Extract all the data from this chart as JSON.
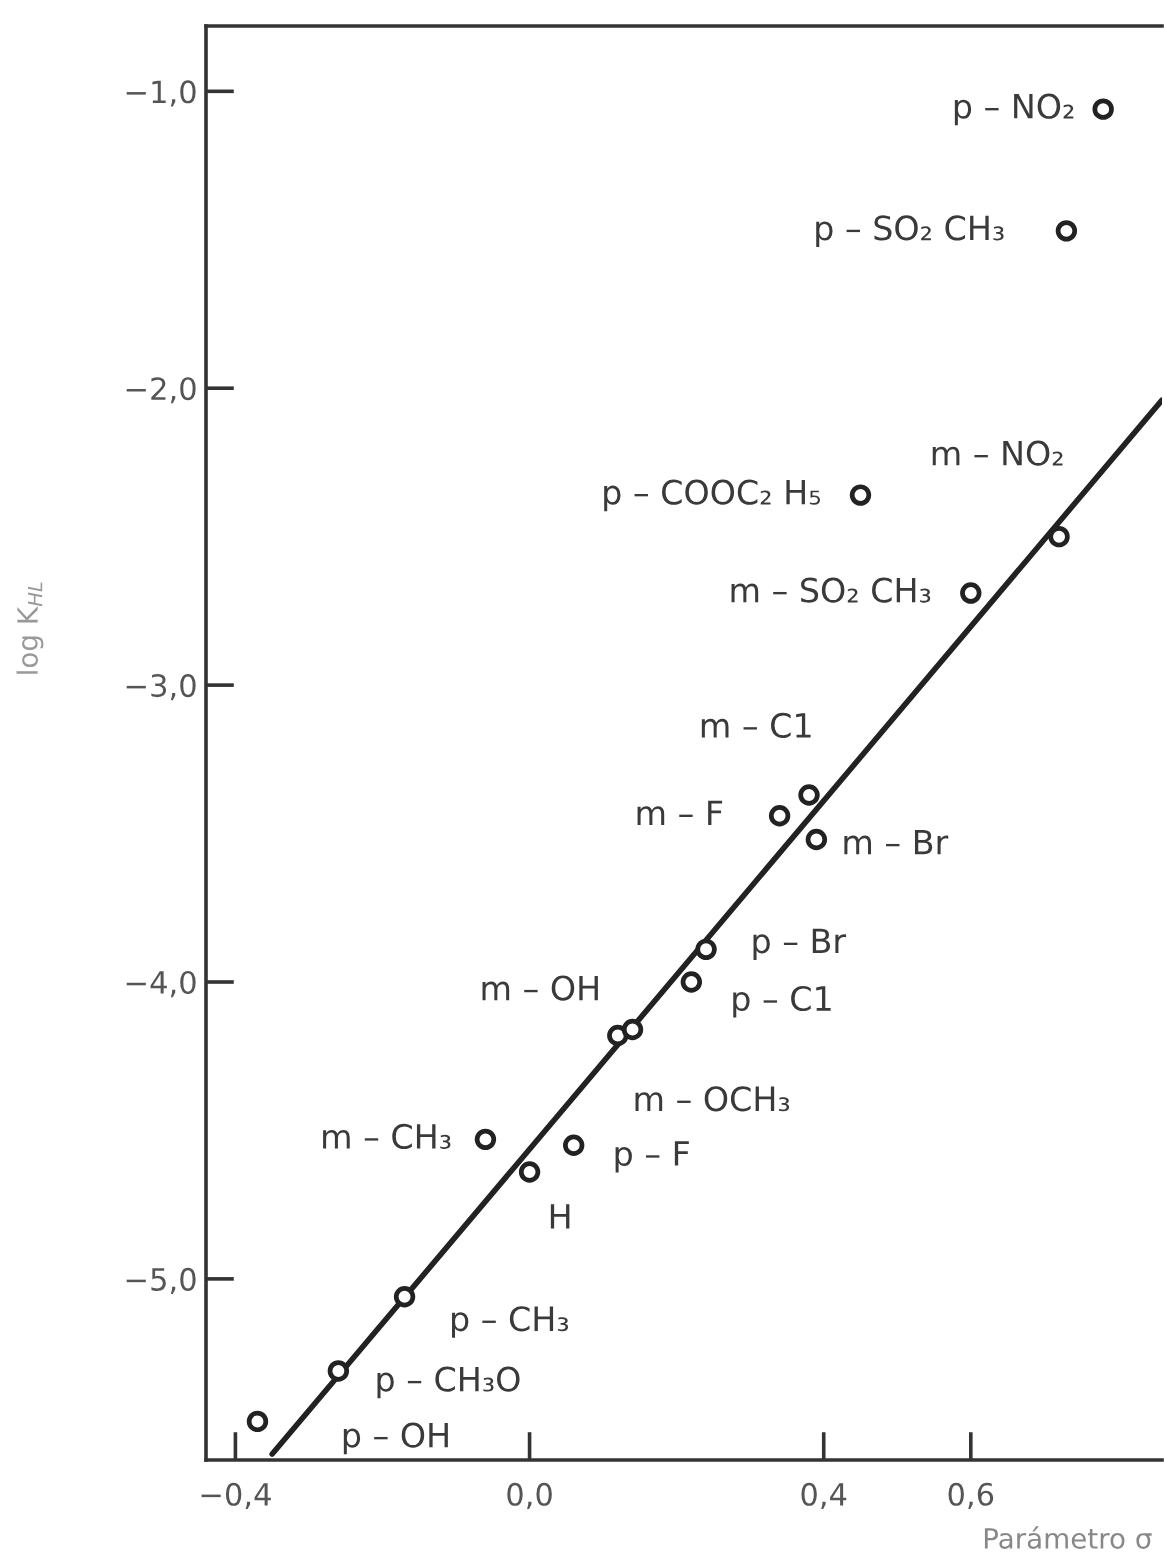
{
  "chart_data": {
    "type": "scatter",
    "xlabel": "Parámetro σ",
    "ylabel": "log K$_{HL}$",
    "xlim": [
      -0.44,
      0.86
    ],
    "ylim": [
      -5.61,
      -0.78
    ],
    "xticks": [
      {
        "value": -0.4,
        "label": "−0,4"
      },
      {
        "value": 0,
        "label": "0,0"
      },
      {
        "value": 0.4,
        "label": "0,4"
      },
      {
        "value": 0.6,
        "label": "0,6"
      }
    ],
    "yticks": [
      {
        "value": -1,
        "label": "−1,0"
      },
      {
        "value": -2,
        "label": "−2,0"
      },
      {
        "value": -3,
        "label": "−3,0"
      },
      {
        "value": -4,
        "label": "−4,0"
      },
      {
        "value": -5,
        "label": "−5,0"
      }
    ],
    "series": [
      {
        "marker": "circle",
        "color": "#222222",
        "x": [
          0.78,
          0.73,
          0.45,
          0.72,
          0.6,
          0.38,
          0.34,
          0.39,
          0.24,
          0.22,
          0.12,
          0.14,
          -0.06,
          0.06,
          0.0,
          -0.17,
          -0.26,
          -0.37
        ],
        "values": [
          -1.06,
          -1.47,
          -2.36,
          -2.5,
          -2.69,
          -3.37,
          -3.44,
          -3.52,
          -3.89,
          -4.0,
          -4.18,
          -4.16,
          -4.53,
          -4.55,
          -4.64,
          -5.06,
          -5.31,
          -5.48
        ]
      },
      {
        "type": "line",
        "line_style": "solid",
        "color": "#222222",
        "x": [
          -0.35,
          0.86
        ],
        "values": [
          -5.59,
          -2.04
        ]
      }
    ],
    "annotations": [
      {
        "text": "p – NO₂",
        "x": 0.78,
        "y": -1.06
      },
      {
        "text": "p – SO₂ CH₃",
        "x": 0.73,
        "y": -1.47
      },
      {
        "text": "p – COOC₂ H₅",
        "x": 0.45,
        "y": -2.36
      },
      {
        "text": "m – NO₂",
        "x": 0.72,
        "y": -2.5
      },
      {
        "text": "m – SO₂ CH₃",
        "x": 0.6,
        "y": -2.69
      },
      {
        "text": "m – C1",
        "x": 0.38,
        "y": -3.37
      },
      {
        "text": "m – F",
        "x": 0.34,
        "y": -3.44
      },
      {
        "text": "m – Br",
        "x": 0.39,
        "y": -3.52
      },
      {
        "text": "p – Br",
        "x": 0.24,
        "y": -3.89
      },
      {
        "text": "p – C1",
        "x": 0.22,
        "y": -4.0
      },
      {
        "text": "m – OH",
        "x": 0.12,
        "y": -4.18
      },
      {
        "text": "m – OCH₃",
        "x": 0.14,
        "y": -4.16
      },
      {
        "text": "m – CH₃",
        "x": -0.06,
        "y": -4.53
      },
      {
        "text": "p – F",
        "x": 0.06,
        "y": -4.55
      },
      {
        "text": "H",
        "x": 0.0,
        "y": -4.64
      },
      {
        "text": "p – CH₃",
        "x": -0.17,
        "y": -5.06
      },
      {
        "text": "p – CH₃O",
        "x": -0.26,
        "y": -5.31
      },
      {
        "text": "p – OH",
        "x": -0.37,
        "y": -5.48
      }
    ]
  }
}
